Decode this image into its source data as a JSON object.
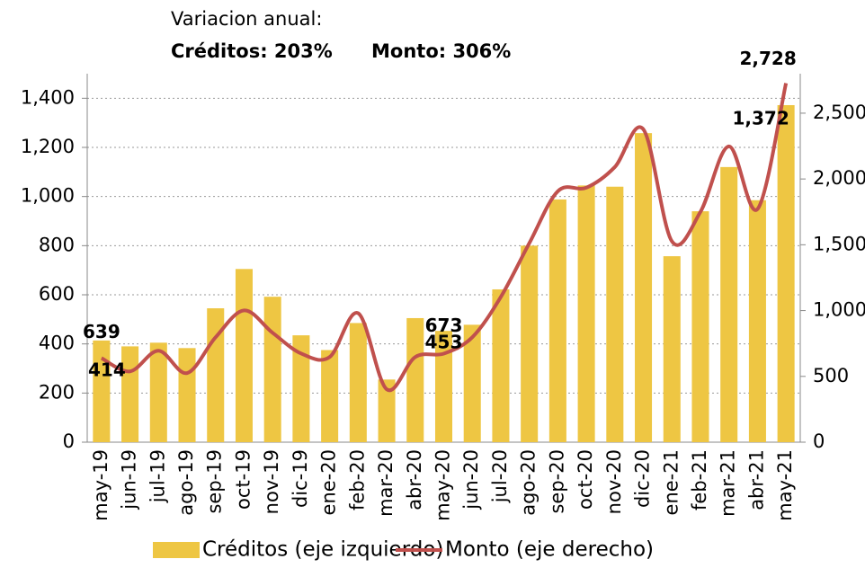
{
  "chart_data": {
    "type": "bar-line",
    "subtitle": "Variacion anual:",
    "annotations": [
      "Créditos: 203%",
      "Monto: 306%"
    ],
    "categories": [
      "may-19",
      "jun-19",
      "jul-19",
      "ago-19",
      "sep-19",
      "oct-19",
      "nov-19",
      "dic-19",
      "ene-20",
      "feb-20",
      "mar-20",
      "abr-20",
      "may-20",
      "jun-20",
      "jul-20",
      "ago-20",
      "sep-20",
      "oct-20",
      "nov-20",
      "dic-20",
      "ene-21",
      "feb-21",
      "mar-21",
      "abr-21",
      "may-21"
    ],
    "series": [
      {
        "name": "Créditos (eje izquierdo)",
        "type": "bar",
        "color": "#eec643",
        "values": [
          414,
          390,
          405,
          383,
          545,
          705,
          592,
          435,
          375,
          485,
          255,
          505,
          453,
          478,
          622,
          800,
          988,
          1045,
          1040,
          1258,
          757,
          940,
          1120,
          985,
          1372
        ],
        "value_labels": [
          "414",
          null,
          null,
          null,
          null,
          null,
          null,
          null,
          null,
          null,
          null,
          null,
          "453",
          null,
          null,
          null,
          null,
          null,
          null,
          null,
          null,
          null,
          null,
          null,
          "1,372"
        ]
      },
      {
        "name": "Monto (eje derecho)",
        "type": "line",
        "axis": "y2",
        "color": "#c0504d",
        "values": [
          639,
          538,
          695,
          525,
          797,
          1001,
          831,
          674,
          647,
          980,
          402,
          647,
          673,
          797,
          1103,
          1512,
          1907,
          1934,
          2091,
          2377,
          1526,
          1750,
          2248,
          1771,
          2728
        ],
        "value_labels": [
          "639",
          null,
          null,
          null,
          null,
          null,
          null,
          null,
          null,
          null,
          null,
          null,
          "673",
          null,
          null,
          null,
          null,
          null,
          null,
          null,
          null,
          null,
          null,
          null,
          "2,728"
        ]
      }
    ],
    "ylim": [
      0,
      1500
    ],
    "yticks": [
      0,
      200,
      400,
      600,
      800,
      {
        "value": 1000,
        "label": "1,000"
      },
      {
        "value": 1200,
        "label": "1,200"
      },
      {
        "value": 1400,
        "label": "1,400"
      }
    ],
    "y2lim": [
      0,
      2800
    ],
    "y2ticks": [
      0,
      500,
      {
        "value": 1000,
        "label": "1,000"
      },
      {
        "value": 1500,
        "label": "1,500"
      },
      {
        "value": 2000,
        "label": "2,000"
      },
      {
        "value": 2500,
        "label": "2,500"
      }
    ],
    "grid": true,
    "legend": "bottom"
  }
}
